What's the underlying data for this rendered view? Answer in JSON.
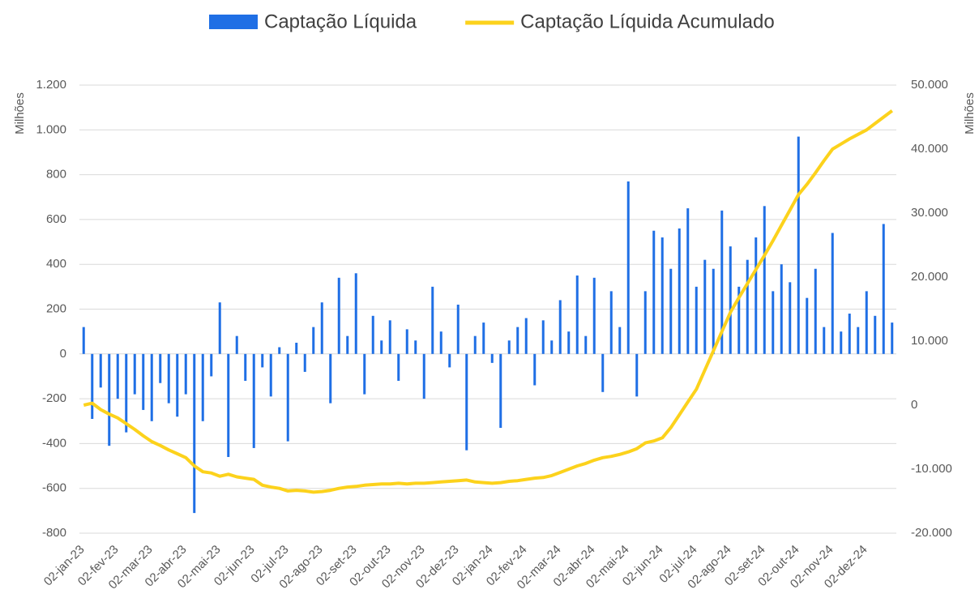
{
  "chart_data": {
    "type": "bar_line",
    "categories": [
      "02-jan-23",
      null,
      null,
      null,
      "02-fev-23",
      null,
      null,
      null,
      "02-mar-23",
      null,
      null,
      null,
      "02-abr-23",
      null,
      null,
      null,
      "02-mai-23",
      null,
      null,
      null,
      "02-jun-23",
      null,
      null,
      null,
      "02-jul-23",
      null,
      null,
      null,
      "02-ago-23",
      null,
      null,
      null,
      "02-set-23",
      null,
      null,
      null,
      "02-out-23",
      null,
      null,
      null,
      "02-nov-23",
      null,
      null,
      null,
      "02-dez-23",
      null,
      null,
      null,
      "02-jan-24",
      null,
      null,
      null,
      "02-fev-24",
      null,
      null,
      null,
      "02-mar-24",
      null,
      null,
      null,
      "02-abr-24",
      null,
      null,
      null,
      "02-mai-24",
      null,
      null,
      null,
      "02-jun-24",
      null,
      null,
      null,
      "02-jul-24",
      null,
      null,
      null,
      "02-ago-24",
      null,
      null,
      null,
      "02-set-24",
      null,
      null,
      null,
      "02-out-24",
      null,
      null,
      null,
      "02-nov-24",
      null,
      null,
      null,
      "02-dez-24",
      null,
      null,
      null
    ],
    "series": [
      {
        "name": "Captação Líquida",
        "color": "#1f6fe5",
        "axis": "y",
        "kind": "bar",
        "values": [
          120,
          -290,
          -150,
          -410,
          -200,
          -350,
          -180,
          -250,
          -300,
          -130,
          -220,
          -280,
          -180,
          -710,
          -300,
          -100,
          230,
          -460,
          80,
          -120,
          -420,
          -60,
          -190,
          30,
          -390,
          50,
          -80,
          120,
          230,
          -220,
          340,
          80,
          360,
          -180,
          170,
          60,
          150,
          -120,
          110,
          60,
          -200,
          300,
          100,
          -60,
          220,
          -430,
          80,
          140,
          -40,
          -330,
          60,
          120,
          160,
          -140,
          150,
          60,
          240,
          100,
          350,
          80,
          340,
          -170,
          280,
          120,
          770,
          -190,
          280,
          550,
          520,
          380,
          560,
          650,
          300,
          420,
          380,
          640,
          480,
          300,
          420,
          520,
          660,
          280,
          400,
          320,
          970,
          250,
          380,
          120,
          540,
          100,
          180,
          120,
          280,
          170,
          580,
          140
        ]
      },
      {
        "name": "Captação Líquida Acumulado",
        "color": "#fcd21c",
        "axis": "y2",
        "kind": "line",
        "values": [
          0,
          300,
          -700,
          -1400,
          -2000,
          -2900,
          -3800,
          -4800,
          -5700,
          -6300,
          -7000,
          -7600,
          -8200,
          -9500,
          -10400,
          -10600,
          -11100,
          -10800,
          -11200,
          -11400,
          -11600,
          -12500,
          -12800,
          -13000,
          -13400,
          -13300,
          -13400,
          -13600,
          -13500,
          -13300,
          -13000,
          -12800,
          -12700,
          -12500,
          -12400,
          -12300,
          -12300,
          -12200,
          -12300,
          -12200,
          -12200,
          -12100,
          -12000,
          -11900,
          -11800,
          -11700,
          -12000,
          -12100,
          -12200,
          -12100,
          -11900,
          -11800,
          -11600,
          -11400,
          -11300,
          -11000,
          -10500,
          -10000,
          -9500,
          -9100,
          -8600,
          -8200,
          -8000,
          -7700,
          -7300,
          -6800,
          -5900,
          -5600,
          -5100,
          -3500,
          -1500,
          500,
          2500,
          5500,
          8500,
          11500,
          14500,
          16800,
          19000,
          21200,
          23400,
          25700,
          28100,
          30500,
          32900,
          34500,
          36300,
          38200,
          40000,
          40800,
          41600,
          42300,
          43000,
          44000,
          45000,
          46000
        ]
      }
    ],
    "ylabel": "Milhões",
    "y2label": "Milhões",
    "ylim": [
      -800,
      1200
    ],
    "yticks": [
      -800,
      -600,
      -400,
      -200,
      0,
      200,
      400,
      600,
      800,
      {
        "value": 1000,
        "label": "1.000"
      },
      {
        "value": 1200,
        "label": "1.200"
      }
    ],
    "y2lim": [
      -20000,
      50000
    ],
    "y2ticks": [
      {
        "value": -20000,
        "label": "-20.000"
      },
      {
        "value": -10000,
        "label": "-10.000"
      },
      0,
      {
        "value": 10000,
        "label": "10.000"
      },
      {
        "value": 20000,
        "label": "20.000"
      },
      {
        "value": 30000,
        "label": "30.000"
      },
      {
        "value": 40000,
        "label": "40.000"
      },
      {
        "value": 50000,
        "label": "50.000"
      }
    ],
    "grid": true,
    "legend": "top"
  }
}
